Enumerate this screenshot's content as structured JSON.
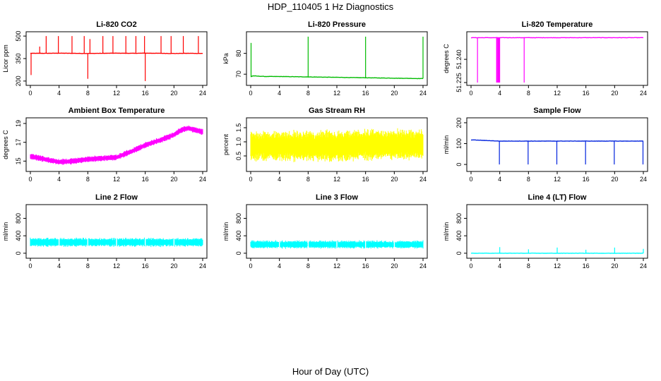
{
  "figure": {
    "title": "HDP_110405  1 Hz Diagnostics",
    "xlabel": "Hour of Day (UTC)"
  },
  "chart_data": [
    {
      "type": "line",
      "title": "Li-820 CO2",
      "ylabel": "Licor ppm",
      "color": "#ff0000",
      "xlim": [
        0,
        24
      ],
      "ylim": [
        190,
        510
      ],
      "xticks": [
        "0",
        "4",
        "8",
        "12",
        "16",
        "20",
        "24"
      ],
      "yticks": [
        {
          "value": 200,
          "label": "200"
        },
        {
          "value": 350,
          "label": "350"
        },
        {
          "value": 500,
          "label": "500"
        }
      ],
      "x": [
        0,
        2,
        4,
        6,
        8,
        10,
        12,
        14,
        16,
        18,
        20,
        22,
        24
      ],
      "values": [
        385,
        385,
        386,
        385,
        384,
        385,
        386,
        385,
        386,
        385,
        384,
        385,
        384
      ],
      "spikes": [
        {
          "x": 0.1,
          "value": 240
        },
        {
          "x": 1.3,
          "value": 430
        },
        {
          "x": 2.2,
          "value": 500
        },
        {
          "x": 3.9,
          "value": 500
        },
        {
          "x": 5.8,
          "value": 500
        },
        {
          "x": 7.5,
          "value": 500
        },
        {
          "x": 8.0,
          "value": 215
        },
        {
          "x": 8.3,
          "value": 480
        },
        {
          "x": 10.1,
          "value": 500
        },
        {
          "x": 11.5,
          "value": 500
        },
        {
          "x": 13.3,
          "value": 500
        },
        {
          "x": 14.7,
          "value": 500
        },
        {
          "x": 16.0,
          "value": 200
        },
        {
          "x": 15.9,
          "value": 500
        },
        {
          "x": 18.2,
          "value": 500
        },
        {
          "x": 19.6,
          "value": 500
        },
        {
          "x": 21.3,
          "value": 500
        },
        {
          "x": 23.4,
          "value": 500
        }
      ]
    },
    {
      "type": "line",
      "title": "Li-820 Pressure",
      "ylabel": "kPa",
      "color": "#00bb00",
      "xlim": [
        0,
        24
      ],
      "ylim": [
        66,
        89
      ],
      "xticks": [
        "0",
        "4",
        "8",
        "12",
        "16",
        "20",
        "24"
      ],
      "yticks": [
        {
          "value": 70,
          "label": "70"
        },
        {
          "value": 80,
          "label": "80"
        }
      ],
      "x": [
        0,
        0.3,
        2,
        4,
        6,
        8,
        10,
        12,
        14,
        16,
        18,
        20,
        22,
        24
      ],
      "values": [
        68.8,
        69.2,
        68.9,
        68.9,
        68.8,
        68.7,
        68.6,
        68.5,
        68.4,
        68.3,
        68.2,
        68.1,
        68.0,
        67.9
      ],
      "spikes": [
        {
          "x": 0.05,
          "value": 85
        },
        {
          "x": 8.0,
          "value": 88
        },
        {
          "x": 16.0,
          "value": 88
        },
        {
          "x": 24.0,
          "value": 88
        }
      ]
    },
    {
      "type": "line",
      "title": "Li-820 Temperature",
      "ylabel": "degrees C",
      "color": "#ff00ff",
      "xlim": [
        0,
        24
      ],
      "ylim": [
        51.225,
        51.256
      ],
      "xticks": [
        "0",
        "4",
        "8",
        "12",
        "16",
        "20",
        "24"
      ],
      "yticks": [
        {
          "value": 51.225,
          "label": "51.225"
        },
        {
          "value": 51.24,
          "label": "51.240"
        }
      ],
      "x": [
        0,
        4,
        8,
        12,
        16,
        20,
        24
      ],
      "values": [
        51.254,
        51.254,
        51.254,
        51.254,
        51.254,
        51.254,
        51.254
      ],
      "spikes": [
        {
          "x": 0.9,
          "value": 51.225
        },
        {
          "x": 3.6,
          "value": 51.225
        },
        {
          "x": 3.8,
          "value": 51.225
        },
        {
          "x": 3.95,
          "value": 51.225
        },
        {
          "x": 7.4,
          "value": 51.225
        }
      ]
    },
    {
      "type": "line",
      "title": "Ambient Box Temperature",
      "ylabel": "degrees C",
      "color": "#ff00ff",
      "xlim": [
        0,
        24
      ],
      "ylim": [
        14.2,
        19.3
      ],
      "xticks": [
        "0",
        "4",
        "8",
        "12",
        "16",
        "20",
        "24"
      ],
      "yticks": [
        {
          "value": 15,
          "label": "15"
        },
        {
          "value": 17,
          "label": "17"
        },
        {
          "value": 19,
          "label": "19"
        }
      ],
      "x": [
        0,
        2,
        4,
        6,
        8,
        10,
        12,
        14,
        16,
        18,
        20,
        21,
        22,
        23,
        24
      ],
      "values": [
        15.5,
        15.2,
        14.9,
        15.0,
        15.2,
        15.3,
        15.4,
        16.0,
        16.7,
        17.2,
        17.8,
        18.3,
        18.5,
        18.3,
        18.1
      ],
      "band": 0.35
    },
    {
      "type": "line",
      "title": "Gas Stream RH",
      "ylabel": "percent",
      "color": "#ffff00",
      "xlim": [
        0,
        24
      ],
      "ylim": [
        0.05,
        1.75
      ],
      "xticks": [
        "0",
        "4",
        "8",
        "12",
        "16",
        "20",
        "24"
      ],
      "yticks": [
        {
          "value": 0.5,
          "label": "0.5"
        },
        {
          "value": 1.0,
          "label": "1.0"
        },
        {
          "value": 1.5,
          "label": "1.5"
        }
      ],
      "x": [
        0,
        4,
        8,
        12,
        16,
        20,
        24
      ],
      "values": [
        0.85,
        0.85,
        0.85,
        0.85,
        0.9,
        0.9,
        0.9
      ],
      "band": 0.6
    },
    {
      "type": "line",
      "title": "Sample Flow",
      "ylabel": "ml/min",
      "color": "#0022dd",
      "xlim": [
        0,
        24
      ],
      "ylim": [
        -20,
        210
      ],
      "xticks": [
        "0",
        "4",
        "8",
        "12",
        "16",
        "20",
        "24"
      ],
      "yticks": [
        {
          "value": 0,
          "label": "0"
        },
        {
          "value": 100,
          "label": "100"
        },
        {
          "value": 200,
          "label": "200"
        }
      ],
      "x": [
        0,
        4,
        8,
        12,
        16,
        20,
        24
      ],
      "values": [
        118,
        112,
        112,
        112,
        112,
        112,
        112
      ],
      "spikes": [
        {
          "x": 3.95,
          "value": 0
        },
        {
          "x": 7.95,
          "value": 0
        },
        {
          "x": 11.95,
          "value": 0
        },
        {
          "x": 15.95,
          "value": 0
        },
        {
          "x": 19.95,
          "value": 0
        },
        {
          "x": 23.95,
          "value": 0
        }
      ]
    },
    {
      "type": "line",
      "title": "Line 2 Flow",
      "ylabel": "ml/min",
      "color": "#00ffff",
      "xlim": [
        0,
        24
      ],
      "ylim": [
        -50,
        1050
      ],
      "xticks": [
        "0",
        "4",
        "8",
        "12",
        "16",
        "20",
        "24"
      ],
      "yticks": [
        {
          "value": 0,
          "label": "0"
        },
        {
          "value": 400,
          "label": "400"
        },
        {
          "value": 800,
          "label": "800"
        }
      ],
      "x": [
        0,
        4,
        8,
        12,
        16,
        20,
        24
      ],
      "values": [
        250,
        250,
        250,
        250,
        250,
        250,
        250
      ],
      "band": 110,
      "gaps": [
        4,
        8,
        12,
        16,
        20
      ]
    },
    {
      "type": "line",
      "title": "Line 3 Flow",
      "ylabel": "ml/min",
      "color": "#00ffff",
      "xlim": [
        0,
        24
      ],
      "ylim": [
        -50,
        1050
      ],
      "xticks": [
        "0",
        "4",
        "8",
        "12",
        "16",
        "20",
        "24"
      ],
      "yticks": [
        {
          "value": 0,
          "label": "0"
        },
        {
          "value": 400,
          "label": "400"
        },
        {
          "value": 800,
          "label": "800"
        }
      ],
      "x": [
        0,
        4,
        8,
        12,
        16,
        20,
        24
      ],
      "values": [
        200,
        200,
        200,
        200,
        200,
        200,
        200
      ],
      "band": 100,
      "gaps": [
        4,
        8,
        12,
        16,
        20
      ]
    },
    {
      "type": "line",
      "title": "Line 4 (LT) Flow",
      "ylabel": "ml/min",
      "color": "#00ffff",
      "xlim": [
        0,
        24
      ],
      "ylim": [
        -50,
        1050
      ],
      "xticks": [
        "0",
        "4",
        "8",
        "12",
        "16",
        "20",
        "24"
      ],
      "yticks": [
        {
          "value": 0,
          "label": "0"
        },
        {
          "value": 400,
          "label": "400"
        },
        {
          "value": 800,
          "label": "800"
        }
      ],
      "x": [
        0,
        4,
        8,
        12,
        16,
        20,
        24
      ],
      "values": [
        0,
        0,
        0,
        0,
        0,
        0,
        0
      ],
      "spikes": [
        {
          "x": 4.0,
          "value": 140
        },
        {
          "x": 8.0,
          "value": 90
        },
        {
          "x": 12.0,
          "value": 130
        },
        {
          "x": 16.0,
          "value": 80
        },
        {
          "x": 20.0,
          "value": 130
        },
        {
          "x": 24.0,
          "value": 100
        }
      ]
    }
  ]
}
